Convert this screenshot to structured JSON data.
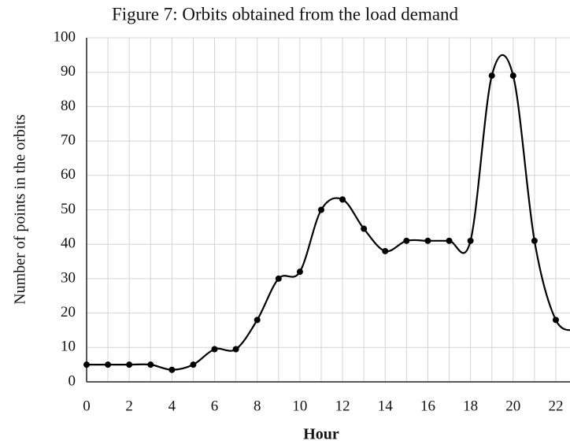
{
  "chart_data": {
    "type": "line",
    "title": "Figure 7: Orbits obtained from the load demand",
    "xlabel": "Hour",
    "ylabel": "Number of points in the orbits",
    "x": [
      0,
      1,
      2,
      3,
      4,
      5,
      6,
      7,
      8,
      9,
      10,
      11,
      12,
      13,
      14,
      15,
      16,
      17,
      18,
      19,
      20,
      21,
      22,
      23
    ],
    "series": [
      {
        "color": "#000000",
        "values": [
          5,
          5,
          5,
          5,
          3.5,
          5,
          9.5,
          9.5,
          18,
          30,
          32,
          50,
          53,
          44.5,
          38,
          41,
          41,
          41,
          41,
          89,
          89,
          41,
          18,
          15
        ]
      }
    ],
    "xlim": [
      0,
      24
    ],
    "xticks": [
      0,
      2,
      4,
      6,
      8,
      10,
      12,
      14,
      16,
      18,
      20,
      22
    ],
    "ylim": [
      0,
      100
    ],
    "yticks": [
      0,
      10,
      20,
      30,
      40,
      50,
      60,
      70,
      80,
      90,
      100
    ],
    "grid": true,
    "smooth": true
  }
}
